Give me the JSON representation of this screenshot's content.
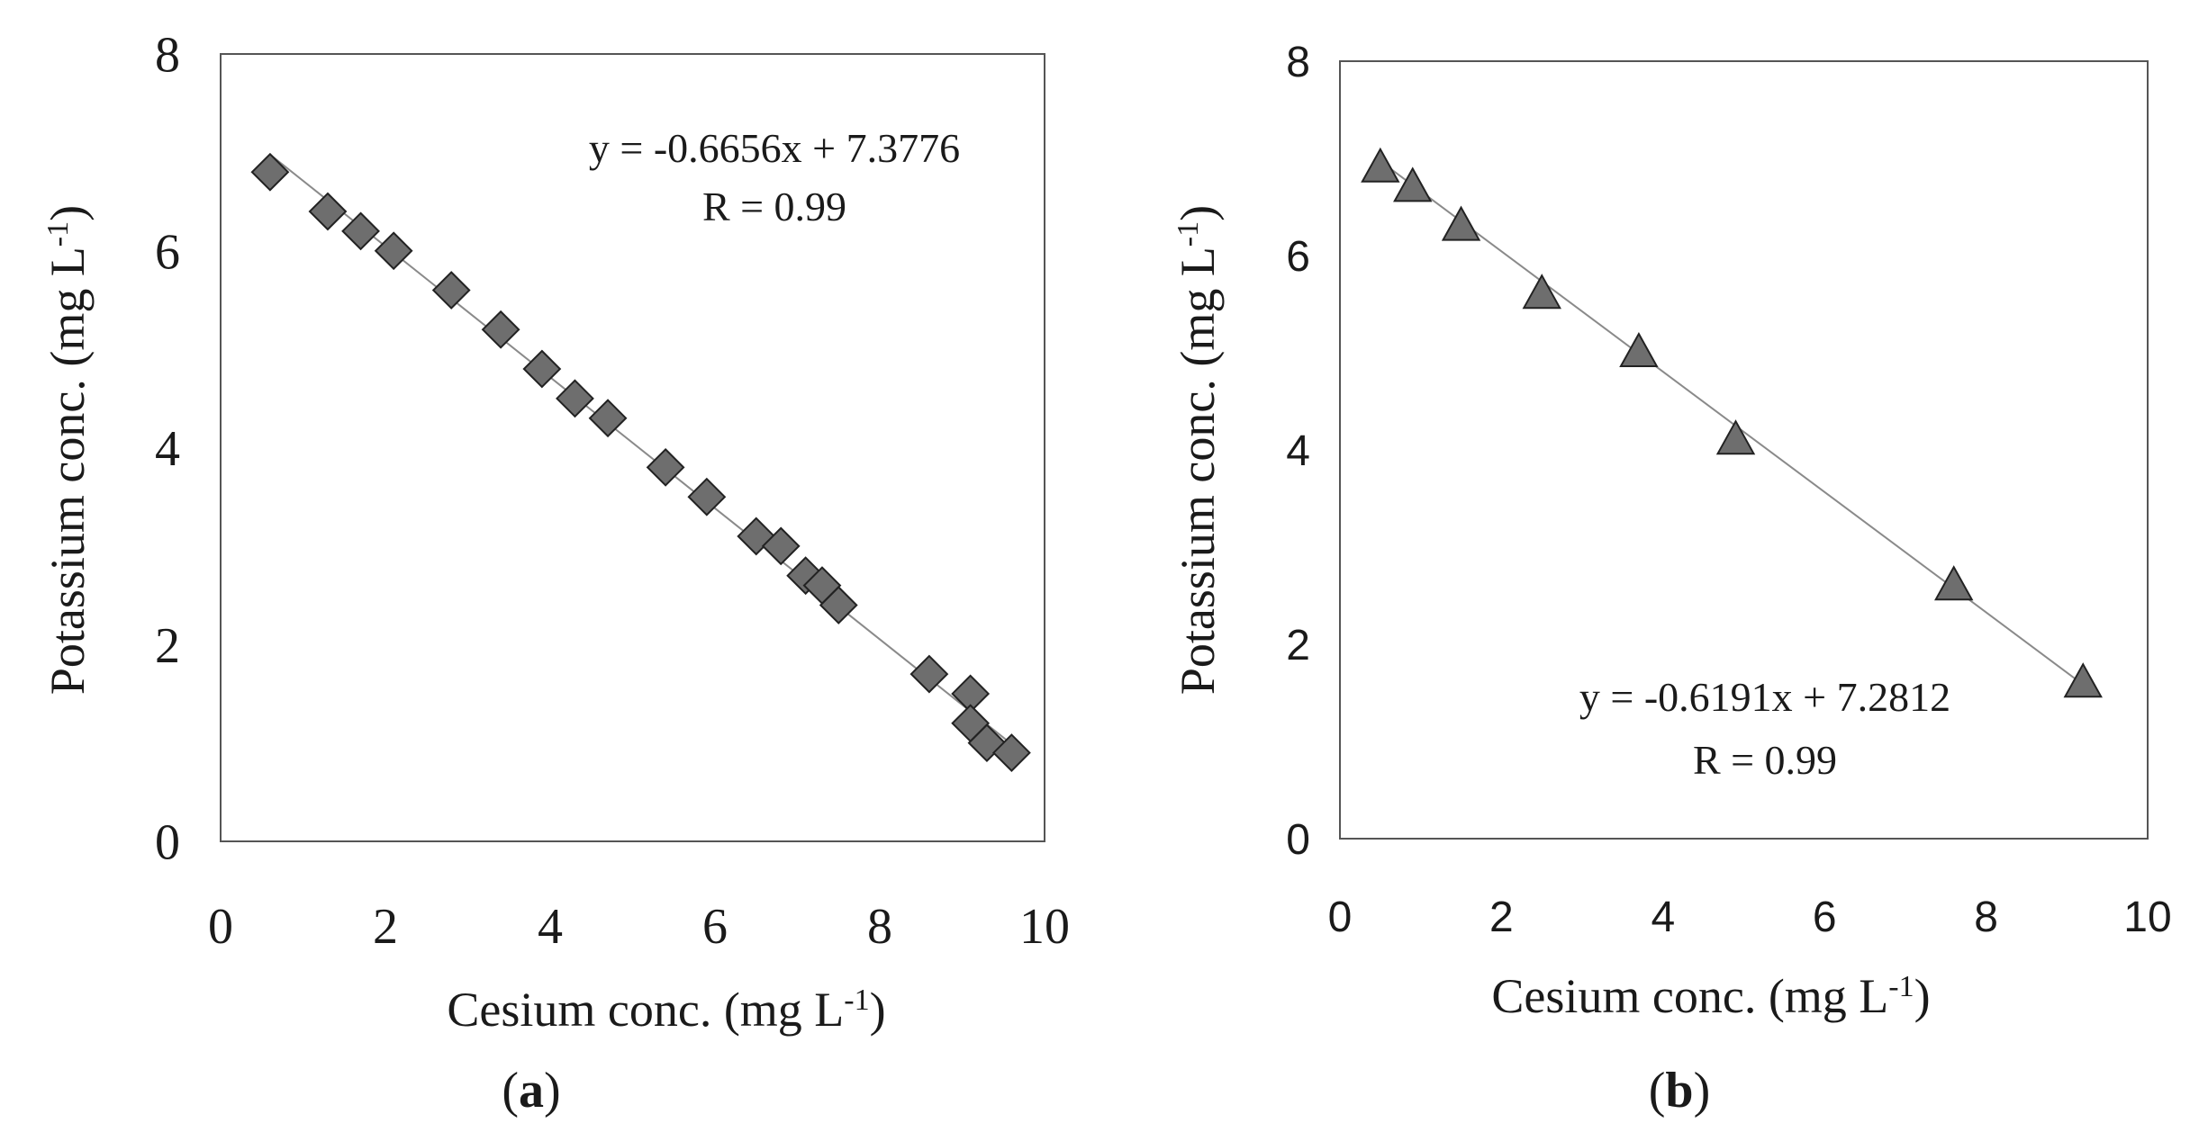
{
  "colors": {
    "marker_fill": "#6e6e6e",
    "marker_stroke": "#222222",
    "fit_line": "#8a8a8a",
    "frame": "#555555"
  },
  "chart_data": [
    {
      "id": "a",
      "type": "scatter",
      "panel_label": "a",
      "marker": "diamond",
      "xlabel": "Cesium conc. (mg L",
      "ylabel": "Potassium conc. (mg L",
      "unit_superscript": "-1",
      "xlim": [
        0,
        10
      ],
      "ylim": [
        0,
        8
      ],
      "xticks": [
        "0",
        "2",
        "4",
        "6",
        "8",
        "10"
      ],
      "yticks": [
        "0",
        "2",
        "4",
        "6",
        "8"
      ],
      "grid": false,
      "equation": "y = -0.6656x + 7.3776",
      "r_text": "R = 0.99",
      "fit": {
        "slope": -0.6656,
        "intercept": 7.3776,
        "x_start": 0.6,
        "x_end": 9.6
      },
      "x": [
        0.6,
        1.3,
        1.7,
        2.1,
        2.8,
        3.4,
        3.9,
        4.3,
        4.7,
        5.4,
        5.9,
        6.5,
        6.8,
        7.1,
        7.3,
        7.5,
        8.6,
        9.1,
        9.1,
        9.3,
        9.6
      ],
      "y": [
        6.8,
        6.4,
        6.2,
        6.0,
        5.6,
        5.2,
        4.8,
        4.5,
        4.3,
        3.8,
        3.5,
        3.1,
        3.0,
        2.7,
        2.6,
        2.4,
        1.7,
        1.5,
        1.2,
        1.0,
        0.9
      ]
    },
    {
      "id": "b",
      "type": "scatter",
      "panel_label": "b",
      "marker": "triangle",
      "xlabel": "Cesium conc. (mg L",
      "ylabel": "Potassium conc. (mg L",
      "unit_superscript": "-1",
      "xlim": [
        0,
        10
      ],
      "ylim": [
        0,
        8
      ],
      "xticks": [
        "0",
        "2",
        "4",
        "6",
        "8",
        "10"
      ],
      "yticks": [
        "0",
        "2",
        "4",
        "6",
        "8"
      ],
      "grid": false,
      "equation": "y = -0.6191x + 7.2812",
      "r_text": "R = 0.99",
      "fit": {
        "slope": -0.6191,
        "intercept": 7.2812,
        "x_start": 0.5,
        "x_end": 9.2
      },
      "x": [
        0.5,
        0.9,
        1.5,
        2.5,
        3.7,
        4.9,
        7.6,
        9.2
      ],
      "y": [
        6.9,
        6.7,
        6.3,
        5.6,
        5.0,
        4.1,
        2.6,
        1.6
      ]
    }
  ]
}
